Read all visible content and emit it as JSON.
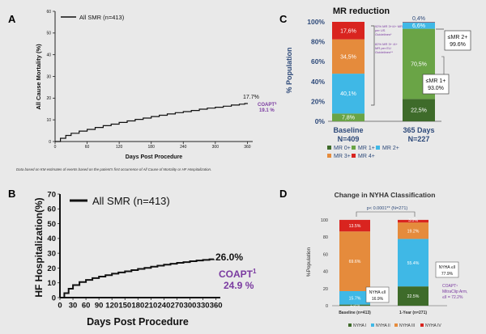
{
  "chart_data": [
    {
      "panel": "A",
      "type": "line",
      "title": "",
      "xlabel": "Days Post Procedure",
      "ylabel": "All Cause Mortality (%)",
      "xlim": [
        0,
        370
      ],
      "ylim": [
        0,
        60
      ],
      "xticks": [
        0,
        60,
        120,
        180,
        240,
        300,
        360
      ],
      "yticks": [
        0,
        10,
        20,
        30,
        40,
        50,
        60
      ],
      "series": [
        {
          "name": "All SMR (n=413)",
          "color": "#111111",
          "x": [
            0,
            10,
            20,
            30,
            45,
            60,
            75,
            90,
            105,
            120,
            135,
            150,
            165,
            180,
            195,
            210,
            225,
            240,
            255,
            270,
            285,
            300,
            315,
            330,
            345,
            355,
            360
          ],
          "y": [
            0,
            1.5,
            2.8,
            3.8,
            4.8,
            5.6,
            6.5,
            7.3,
            8.0,
            8.8,
            9.5,
            10.2,
            10.8,
            11.5,
            12.1,
            12.7,
            13.3,
            13.8,
            14.3,
            14.9,
            15.4,
            15.8,
            16.3,
            16.8,
            17.2,
            17.5,
            17.7
          ]
        }
      ],
      "end_label": "17.7%",
      "comparator": "COAPT",
      "comparator_sup": "1",
      "comparator_value": "19.1 %",
      "footnote": "Data based on KM estimates of events based on the patient's first occurrence of All Cause of Mortality or HF Hospitalization."
    },
    {
      "panel": "B",
      "type": "line",
      "xlabel": "Days Post Procedure",
      "ylabel": "HF Hospitalization(%)",
      "xlim": [
        0,
        370
      ],
      "ylim": [
        0,
        70
      ],
      "xticks": [
        0,
        30,
        60,
        90,
        120,
        150,
        180,
        210,
        240,
        270,
        300,
        330,
        360
      ],
      "yticks": [
        0,
        10,
        20,
        30,
        40,
        50,
        60,
        70
      ],
      "series": [
        {
          "name": "All SMR (n=413)",
          "color": "#111111",
          "x": [
            0,
            10,
            20,
            30,
            45,
            60,
            75,
            90,
            105,
            120,
            135,
            150,
            165,
            180,
            195,
            210,
            225,
            240,
            255,
            270,
            285,
            300,
            315,
            330,
            345,
            355
          ],
          "y": [
            0,
            3.0,
            6.0,
            8.5,
            10.5,
            12.0,
            13.2,
            14.2,
            15.2,
            16.2,
            17.0,
            17.8,
            18.6,
            19.4,
            20.1,
            20.9,
            21.6,
            22.3,
            22.9,
            23.5,
            24.0,
            24.6,
            25.1,
            25.5,
            25.9,
            26.0
          ]
        }
      ],
      "end_label": "26.0%",
      "comparator": "COAPT",
      "comparator_sup": "1",
      "comparator_value": "24.9 %"
    },
    {
      "panel": "C",
      "type": "bar",
      "title": "MR reduction",
      "ylabel": "% Population",
      "yticks": [
        "0%",
        "20%",
        "40%",
        "60%",
        "80%",
        "100%"
      ],
      "categories": [
        "Baseline N=409",
        "365 Days N=227"
      ],
      "category_lines": [
        [
          "Baseline",
          "N=409"
        ],
        [
          "365 Days",
          "N=227"
        ]
      ],
      "series": [
        {
          "name": "MR 0+",
          "color": "#3e6b2a",
          "values": [
            0,
            22.5
          ]
        },
        {
          "name": "MR 1+",
          "color": "#6aa446",
          "values": [
            7.8,
            70.5
          ]
        },
        {
          "name": "MR 2+",
          "color": "#3fb8e6",
          "values": [
            40.1,
            6.6
          ]
        },
        {
          "name": "MR 3+",
          "color": "#e58b3c",
          "values": [
            34.5,
            0
          ]
        },
        {
          "name": "MR 4+",
          "color": "#d9241f",
          "values": [
            17.6,
            0.4
          ]
        }
      ],
      "value_labels": [
        [
          "",
          "7,8%",
          "40,1%",
          "34,5%",
          "17,6%"
        ],
        [
          "22,5%",
          "70,5%",
          "6,6%",
          "",
          "0,4%"
        ]
      ],
      "note_us": "92% MR 3+/4+ MR per US Guidelines*",
      "note_eu": "82% MR 3+ /4+ MR per EU Guidelines**",
      "callout_2": "≤MR 2+",
      "callout_2_value": "99.6%",
      "callout_1": "≤MR 1+",
      "callout_1_value": "93.0%"
    },
    {
      "panel": "D",
      "type": "bar",
      "title": "Change in NYHA Classification",
      "ylabel": "%Population",
      "yticks": [
        "0",
        "20",
        "40",
        "60",
        "80",
        "100"
      ],
      "categories": [
        "Baseline (n=413)",
        "1-Year (n=271)"
      ],
      "series": [
        {
          "name": "NYHA I",
          "color": "#3e6b2a",
          "values": [
            1.3,
            22.5
          ]
        },
        {
          "name": "NYHA II",
          "color": "#3fb8e6",
          "values": [
            15.7,
            55.4
          ]
        },
        {
          "name": "NYHA III",
          "color": "#e58b3c",
          "values": [
            69.6,
            19.2
          ]
        },
        {
          "name": "NYHA IV",
          "color": "#d9241f",
          "values": [
            13.5,
            3.0
          ]
        }
      ],
      "value_labels": [
        [
          "1.3%",
          "15.7%",
          "69.6%",
          "13.5%"
        ],
        [
          "22.5%",
          "55.4%",
          "19.2%",
          "3.0%"
        ]
      ],
      "pvalue": "p< 0.0001** (N=271)",
      "callout_base": "NYHA ≤II",
      "callout_base_value": "16.9%",
      "callout_year": "NYHA ≤II",
      "callout_year_value": "77.9%",
      "coapt_note_1": "COAPT¹",
      "coapt_note_2": "MitraClip Arm,",
      "coapt_note_3": "≤II = 72.2%"
    }
  ],
  "panel_letters": {
    "a": "A",
    "b": "B",
    "c": "C",
    "d": "D"
  }
}
